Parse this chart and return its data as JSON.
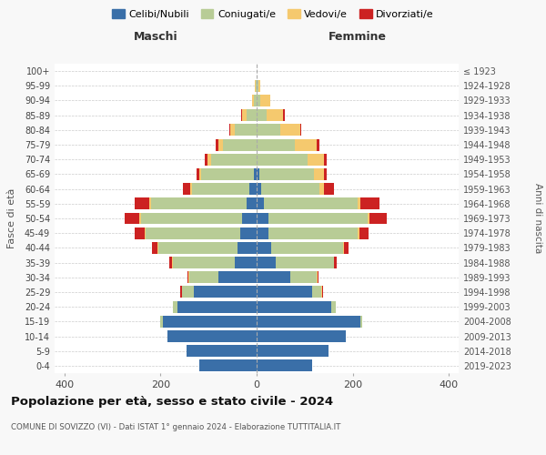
{
  "age_groups": [
    "0-4",
    "5-9",
    "10-14",
    "15-19",
    "20-24",
    "25-29",
    "30-34",
    "35-39",
    "40-44",
    "45-49",
    "50-54",
    "55-59",
    "60-64",
    "65-69",
    "70-74",
    "75-79",
    "80-84",
    "85-89",
    "90-94",
    "95-99",
    "100+"
  ],
  "birth_years": [
    "2019-2023",
    "2014-2018",
    "2009-2013",
    "2004-2008",
    "1999-2003",
    "1994-1998",
    "1989-1993",
    "1984-1988",
    "1979-1983",
    "1974-1978",
    "1969-1973",
    "1964-1968",
    "1959-1963",
    "1954-1958",
    "1949-1953",
    "1944-1948",
    "1939-1943",
    "1934-1938",
    "1929-1933",
    "1924-1928",
    "≤ 1923"
  ],
  "male": {
    "celibi": [
      120,
      145,
      185,
      195,
      165,
      130,
      80,
      45,
      40,
      35,
      30,
      20,
      15,
      5,
      0,
      0,
      0,
      0,
      0,
      0,
      0
    ],
    "coniugati": [
      0,
      0,
      0,
      5,
      10,
      25,
      60,
      130,
      165,
      195,
      210,
      200,
      120,
      110,
      95,
      70,
      45,
      20,
      5,
      2,
      0
    ],
    "vedovi": [
      0,
      0,
      0,
      0,
      0,
      1,
      1,
      1,
      2,
      3,
      5,
      3,
      3,
      5,
      8,
      10,
      10,
      10,
      5,
      1,
      0
    ],
    "divorziati": [
      0,
      0,
      0,
      0,
      0,
      2,
      3,
      5,
      10,
      20,
      30,
      30,
      15,
      5,
      5,
      5,
      2,
      2,
      0,
      0,
      0
    ]
  },
  "female": {
    "nubili": [
      115,
      150,
      185,
      215,
      155,
      115,
      70,
      40,
      30,
      25,
      25,
      15,
      10,
      5,
      0,
      0,
      0,
      0,
      0,
      0,
      0
    ],
    "coniugate": [
      0,
      0,
      0,
      5,
      10,
      20,
      55,
      120,
      150,
      185,
      205,
      195,
      120,
      115,
      105,
      80,
      50,
      20,
      8,
      3,
      0
    ],
    "vedove": [
      0,
      0,
      0,
      0,
      0,
      1,
      1,
      1,
      2,
      3,
      5,
      5,
      10,
      20,
      35,
      45,
      40,
      35,
      20,
      5,
      0
    ],
    "divorziate": [
      0,
      0,
      0,
      0,
      0,
      2,
      3,
      5,
      10,
      20,
      35,
      40,
      20,
      5,
      5,
      5,
      3,
      3,
      0,
      0,
      0
    ]
  },
  "colors": {
    "celibi": "#3a6fa8",
    "coniugati": "#b8cc96",
    "vedovi": "#f5c96e",
    "divorziati": "#cc2222"
  },
  "xlim": [
    -420,
    420
  ],
  "xticks": [
    -400,
    -200,
    0,
    200,
    400
  ],
  "xtick_labels": [
    "400",
    "200",
    "0",
    "200",
    "400"
  ],
  "title": "Popolazione per età, sesso e stato civile - 2024",
  "subtitle": "COMUNE DI SOVIZZO (VI) - Dati ISTAT 1° gennaio 2024 - Elaborazione TUTTITALIA.IT",
  "ylabel_left": "Fasce di età",
  "ylabel_right": "Anni di nascita",
  "maschi_label": "Maschi",
  "femmine_label": "Femmine",
  "legend_labels": [
    "Celibi/Nubili",
    "Coniugati/e",
    "Vedovi/e",
    "Divorziati/e"
  ],
  "bg_color": "#f8f8f8",
  "plot_bg": "#ffffff"
}
